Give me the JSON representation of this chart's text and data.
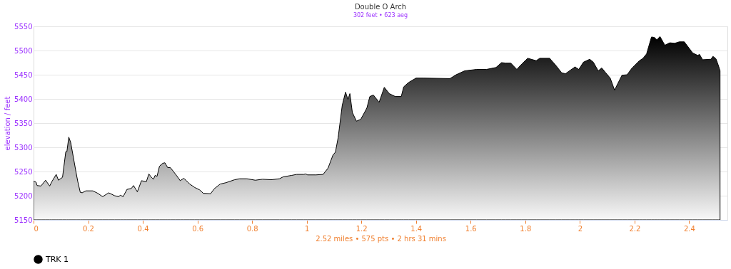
{
  "chart_data": {
    "type": "area",
    "title": "Double O Arch",
    "subtitle": "302 feet • 623 aeg",
    "xlabel": "2.52 miles • 575 pts • 2 hrs 31 mins",
    "ylabel": "elevation / feet",
    "xlim": [
      0,
      2.54
    ],
    "xticks": [
      0,
      0.2,
      0.4,
      0.6,
      0.8,
      1,
      1.2,
      1.4,
      1.6,
      1.8,
      2,
      2.2,
      2.4
    ],
    "ylim": [
      5150,
      5550
    ],
    "yticks": [
      5150,
      5200,
      5250,
      5300,
      5350,
      5400,
      5450,
      5500,
      5550
    ],
    "grid": "y",
    "legend": "bottom",
    "line_style": "solid",
    "series": [
      {
        "name": "TRK 1",
        "color": "#000000",
        "x": [
          0,
          0.009,
          0.013,
          0.027,
          0.044,
          0.059,
          0.067,
          0.083,
          0.091,
          0.106,
          0.118,
          0.122,
          0.129,
          0.136,
          0.155,
          0.162,
          0.171,
          0.178,
          0.191,
          0.217,
          0.235,
          0.253,
          0.275,
          0.297,
          0.311,
          0.318,
          0.328,
          0.342,
          0.358,
          0.366,
          0.38,
          0.395,
          0.413,
          0.422,
          0.43,
          0.439,
          0.445,
          0.452,
          0.461,
          0.473,
          0.481,
          0.491,
          0.501,
          0.519,
          0.537,
          0.55,
          0.572,
          0.59,
          0.608,
          0.621,
          0.648,
          0.661,
          0.683,
          0.705,
          0.736,
          0.754,
          0.781,
          0.812,
          0.838,
          0.87,
          0.9,
          0.914,
          0.945,
          0.963,
          0.989,
          0.996,
          1.003,
          1.034,
          1.06,
          1.078,
          1.096,
          1.105,
          1.115,
          1.13,
          1.142,
          1.151,
          1.158,
          1.167,
          1.182,
          1.198,
          1.22,
          1.231,
          1.244,
          1.265,
          1.284,
          1.302,
          1.324,
          1.346,
          1.355,
          1.373,
          1.4,
          1.427,
          1.524,
          1.547,
          1.578,
          1.622,
          1.658,
          1.693,
          1.713,
          1.729,
          1.747,
          1.769,
          1.787,
          1.809,
          1.84,
          1.853,
          1.889,
          1.911,
          1.933,
          1.947,
          1.964,
          1.982,
          1.996,
          2.013,
          2.036,
          2.049,
          2.067,
          2.08,
          2.093,
          2.111,
          2.127,
          2.138,
          2.154,
          2.173,
          2.191,
          2.218,
          2.231,
          2.244,
          2.262,
          2.273,
          2.282,
          2.293,
          2.311,
          2.329,
          2.347,
          2.364,
          2.382,
          2.413,
          2.431,
          2.438,
          2.449,
          2.48,
          2.487,
          2.498,
          2.507,
          2.513
        ],
        "values": [
          5230,
          5228,
          5221,
          5220,
          5232,
          5220,
          5229,
          5244,
          5232,
          5238,
          5291,
          5291,
          5321,
          5310,
          5250,
          5229,
          5207,
          5206,
          5210,
          5210,
          5205,
          5198,
          5206,
          5200,
          5198,
          5201,
          5198,
          5213,
          5215,
          5221,
          5208,
          5231,
          5229,
          5245,
          5239,
          5234,
          5242,
          5240,
          5261,
          5267,
          5268,
          5258,
          5258,
          5245,
          5231,
          5236,
          5224,
          5217,
          5212,
          5205,
          5204,
          5214,
          5224,
          5227,
          5233,
          5235,
          5235,
          5232,
          5234,
          5233,
          5235,
          5239,
          5242,
          5244,
          5244,
          5245,
          5243,
          5243,
          5244,
          5257,
          5284,
          5290,
          5320,
          5387,
          5414,
          5399,
          5411,
          5372,
          5354,
          5358,
          5381,
          5405,
          5408,
          5393,
          5424,
          5411,
          5405,
          5405,
          5425,
          5434,
          5443,
          5443,
          5442,
          5450,
          5458,
          5461,
          5461,
          5465,
          5475,
          5474,
          5474,
          5461,
          5472,
          5484,
          5479,
          5484,
          5484,
          5470,
          5454,
          5452,
          5459,
          5466,
          5461,
          5476,
          5482,
          5476,
          5458,
          5464,
          5455,
          5443,
          5418,
          5431,
          5449,
          5450,
          5464,
          5479,
          5484,
          5493,
          5528,
          5527,
          5522,
          5529,
          5511,
          5516,
          5515,
          5518,
          5518,
          5495,
          5490,
          5492,
          5481,
          5482,
          5488,
          5483,
          5469,
          5458
        ]
      }
    ]
  }
}
